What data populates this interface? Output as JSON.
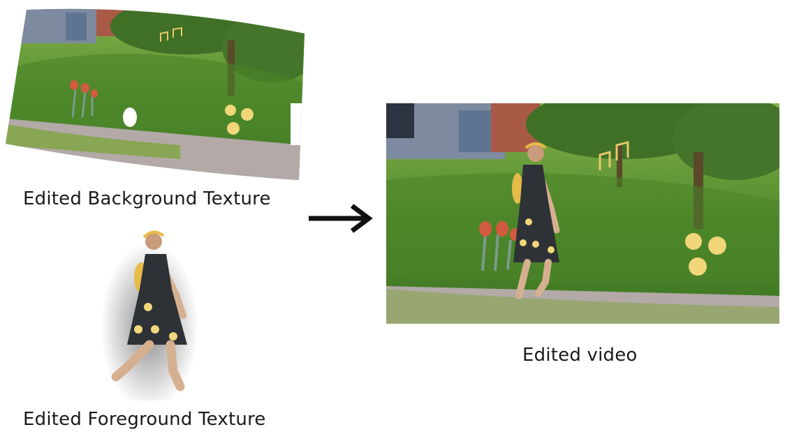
{
  "labels": {
    "background": "Edited Background Texture",
    "foreground": "Edited Foreground Texture",
    "video": "Edited video"
  },
  "colors": {
    "grass": "#4f8a2c",
    "grass_light": "#86b04a",
    "path": "#b3a9a7",
    "flower_yellow": "#f2d67a",
    "flower_red": "#d25a40",
    "dress": "#2e3136",
    "arrow": "#111111"
  }
}
